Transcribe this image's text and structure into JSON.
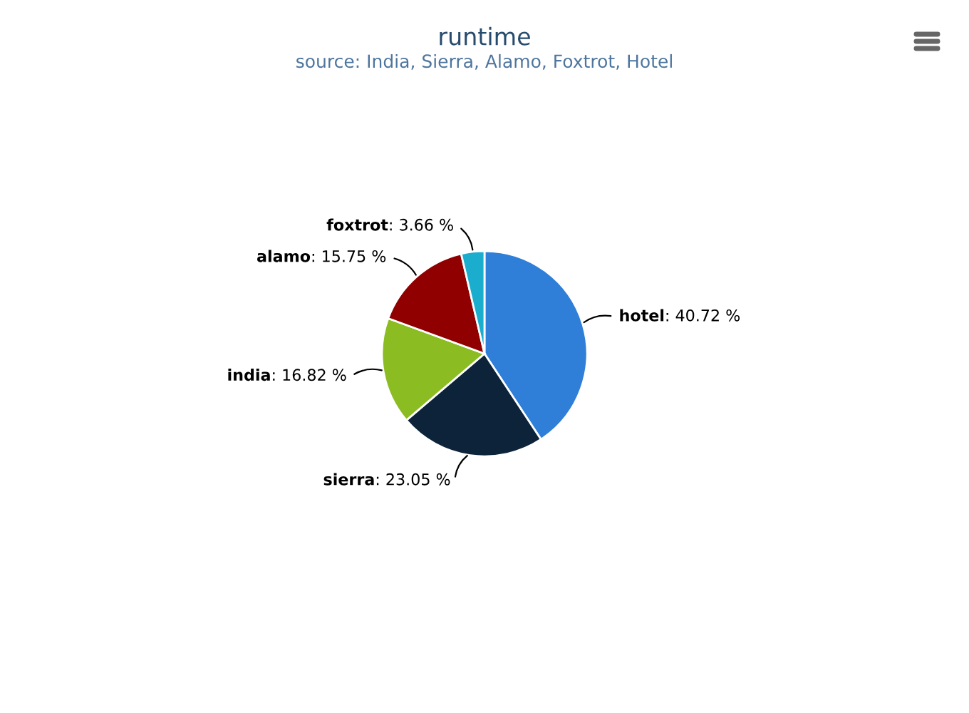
{
  "chart_data": {
    "type": "pie",
    "title": "runtime",
    "subtitle": "source: India, Sierra, Alamo, Foxtrot, Hotel",
    "categories": [
      "hotel",
      "sierra",
      "india",
      "alamo",
      "foxtrot"
    ],
    "values": [
      40.72,
      23.05,
      16.82,
      15.75,
      3.66
    ],
    "value_labels": [
      ": 40.72 %",
      ": 23.05 %",
      ": 16.82 %",
      ": 15.75 %",
      ": 3.66 %"
    ],
    "colors": [
      "#2f7ed8",
      "#0d233a",
      "#8bbc21",
      "#910000",
      "#1aadce"
    ],
    "legend": false
  }
}
